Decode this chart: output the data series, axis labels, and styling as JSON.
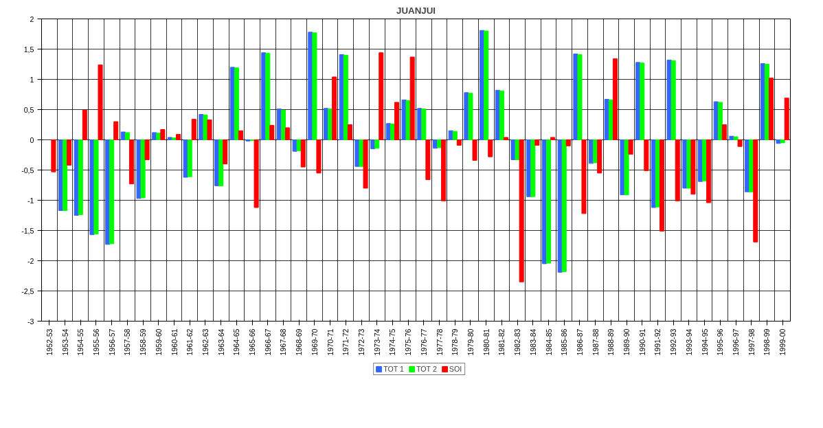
{
  "chart_data": {
    "type": "bar",
    "title": "JUANJUI",
    "categories": [
      "1952-53",
      "1953-54",
      "1954-55",
      "1955-56",
      "1956-57",
      "1957-58",
      "1958-59",
      "1959-60",
      "1960-61",
      "1961-62",
      "1962-63",
      "1963-64",
      "1964-65",
      "1965-66",
      "1966-67",
      "1967-68",
      "1968-69",
      "1969-70",
      "1970-71",
      "1971-72",
      "1972-73",
      "1973-74",
      "1974-75",
      "1975-76",
      "1976-77",
      "1977-78",
      "1978-79",
      "1979-80",
      "1980-81",
      "1981-82",
      "1982-83",
      "1983-84",
      "1984-85",
      "1985-86",
      "1986-87",
      "1987-88",
      "1988-89",
      "1989-90",
      "1990-91",
      "1991-92",
      "1992-93",
      "1993-94",
      "1994-95",
      "1995-96",
      "1996-97",
      "1997-98",
      "1998-99",
      "1999-00"
    ],
    "series": [
      {
        "name": "TOT 1",
        "color": "#3366ff",
        "values": [
          null,
          -1.17,
          -1.25,
          -1.57,
          -1.73,
          0.13,
          -0.97,
          0.12,
          0.04,
          -0.62,
          0.42,
          -0.76,
          1.2,
          -0.02,
          1.44,
          0.51,
          -0.19,
          1.78,
          0.52,
          1.41,
          -0.44,
          -0.15,
          0.27,
          0.66,
          0.52,
          -0.14,
          0.15,
          0.78,
          1.81,
          0.82,
          -0.33,
          -0.94,
          -2.05,
          -2.19,
          1.42,
          -0.39,
          0.67,
          -0.91,
          1.28,
          -1.12,
          1.32,
          -0.8,
          -0.69,
          0.63,
          0.06,
          -0.86,
          1.26,
          -0.06
        ]
      },
      {
        "name": "TOT 2",
        "color": "#00ff00",
        "values": [
          null,
          -1.17,
          -1.24,
          -1.56,
          -1.72,
          0.12,
          -0.96,
          0.11,
          0.03,
          -0.61,
          0.41,
          -0.76,
          1.19,
          -0.01,
          1.43,
          0.49,
          -0.18,
          1.77,
          0.51,
          1.4,
          -0.44,
          -0.14,
          0.26,
          0.65,
          0.51,
          -0.13,
          0.14,
          0.77,
          1.8,
          0.81,
          -0.33,
          -0.94,
          -2.04,
          -2.18,
          1.41,
          -0.38,
          0.66,
          -0.91,
          1.27,
          -1.11,
          1.31,
          -0.8,
          -0.68,
          0.62,
          0.05,
          -0.86,
          1.25,
          -0.05
        ]
      },
      {
        "name": "SOI",
        "color": "#ff0000",
        "values": [
          -0.53,
          -0.42,
          0.49,
          1.24,
          0.3,
          -0.73,
          -0.33,
          0.17,
          0.09,
          0.34,
          0.33,
          -0.4,
          0.15,
          -1.12,
          0.24,
          0.2,
          -0.45,
          -0.55,
          1.04,
          0.25,
          -0.8,
          1.44,
          0.62,
          1.37,
          -0.66,
          -1.01,
          -0.09,
          -0.34,
          -0.28,
          0.04,
          -2.35,
          -0.09,
          0.04,
          -0.1,
          -1.22,
          -0.55,
          1.34,
          -0.24,
          -0.51,
          -1.51,
          -1.01,
          -0.9,
          -1.04,
          0.25,
          -0.11,
          -1.69,
          1.02,
          0.69
        ]
      }
    ],
    "ylim": [
      -3,
      2
    ],
    "yticks": [
      -3,
      {
        "value": -2.5,
        "label": "-2,5"
      },
      -2,
      {
        "value": -1.5,
        "label": "-1,5"
      },
      -1,
      {
        "value": -0.5,
        "label": "-0,5"
      },
      0,
      {
        "value": 0.5,
        "label": "0,5"
      },
      1,
      {
        "value": 1.5,
        "label": "1,5"
      },
      2
    ],
    "grid": true,
    "legend": "bottom"
  }
}
